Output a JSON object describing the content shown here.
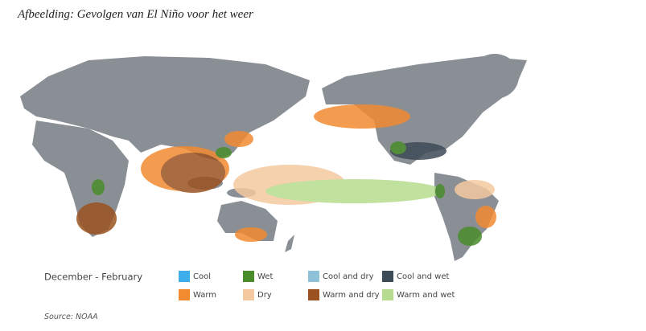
{
  "caption": "Afbeelding: Gevolgen van El Niño voor het weer",
  "map": {
    "season": "December - February",
    "legend": [
      {
        "label": "Cool",
        "color": "#3daee9"
      },
      {
        "label": "Warm",
        "color": "#f28a30"
      },
      {
        "label": "Wet",
        "color": "#4a8c2a"
      },
      {
        "label": "Dry",
        "color": "#f5c9a0"
      },
      {
        "label": "Cool and dry",
        "color": "#8fc1d9"
      },
      {
        "label": "Warm and dry",
        "color": "#9b5220"
      },
      {
        "label": "Cool and wet",
        "color": "#3d4a57"
      },
      {
        "label": "Warm and wet",
        "color": "#b7dc8f"
      }
    ]
  },
  "source": "Source: NOAA"
}
